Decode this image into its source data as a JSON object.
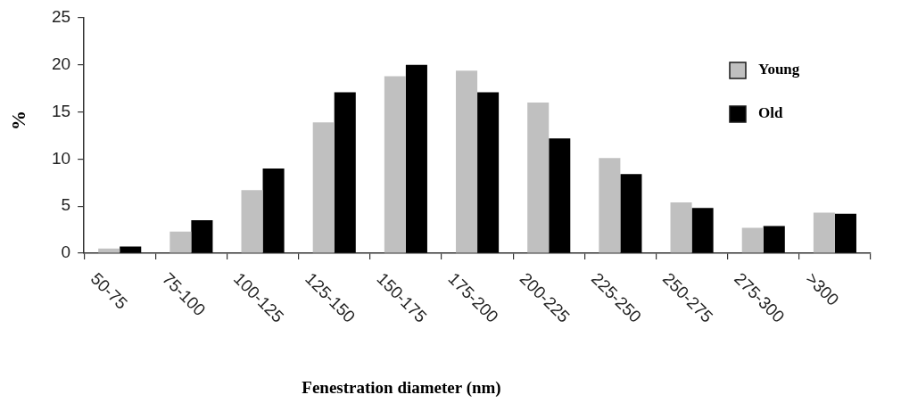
{
  "chart_data": {
    "type": "bar",
    "xlabel": "Fenestration diameter (nm)",
    "ylabel": "%",
    "categories": [
      "50-75",
      "75-100",
      "100-125",
      "125-150",
      "150-175",
      "175-200",
      "200-225",
      "225-250",
      "250-275",
      "275-300",
      ">300"
    ],
    "series": [
      {
        "name": "Young",
        "color": "#c0c0c0",
        "values": [
          0.5,
          2.3,
          6.7,
          13.9,
          18.8,
          19.4,
          16.0,
          10.1,
          5.4,
          2.7,
          4.3
        ]
      },
      {
        "name": "Old",
        "color": "#000000",
        "values": [
          0.7,
          3.5,
          9.0,
          17.1,
          20.0,
          17.1,
          12.2,
          8.4,
          4.8,
          2.9,
          4.2
        ]
      }
    ],
    "ylim": [
      0,
      25
    ],
    "yticks": [
      0,
      5,
      10,
      15,
      20,
      25
    ],
    "grid": false,
    "legend": "top right"
  }
}
